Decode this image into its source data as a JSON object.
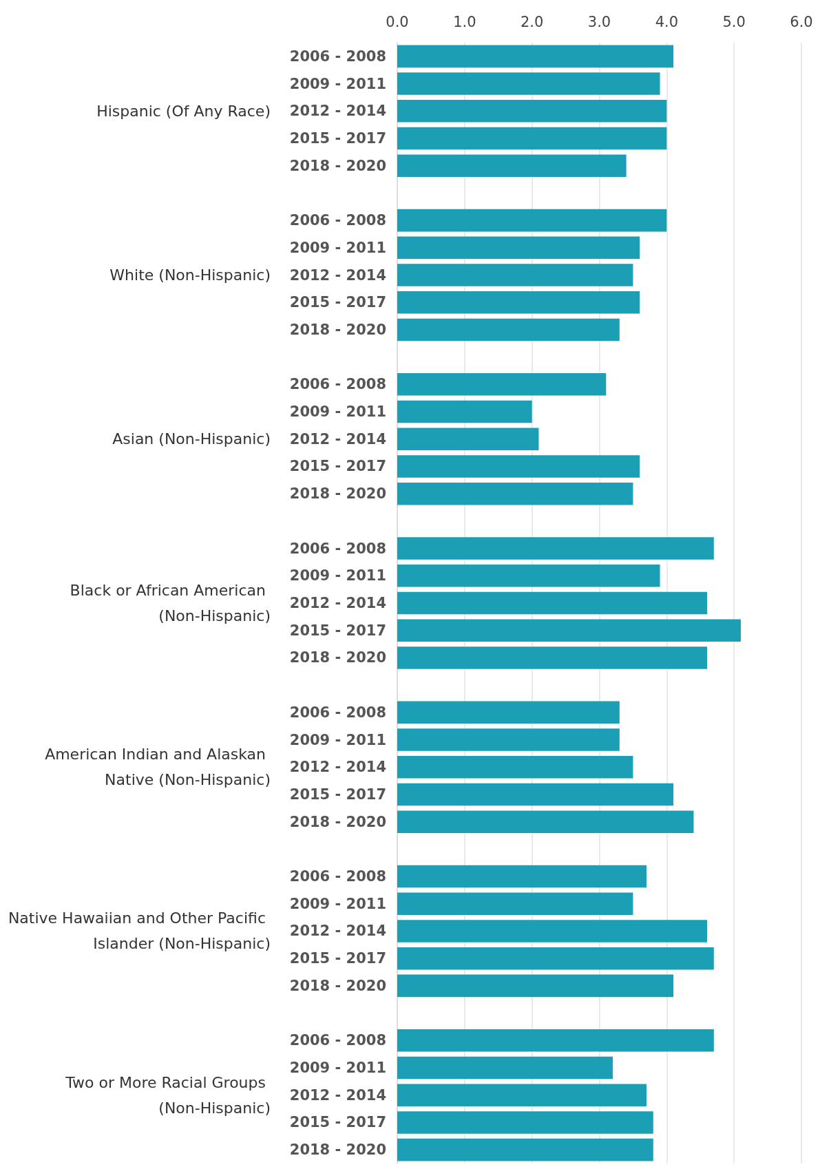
{
  "chart_data": {
    "type": "bar",
    "orientation": "horizontal",
    "color": "#1a9fb5",
    "categories": [
      "2006 - 2008",
      "2009 - 2011",
      "2012 - 2014",
      "2015 - 2017",
      "2018 - 2020",
      null,
      "2006 - 2008",
      "2009 - 2011",
      "2012 - 2014",
      "2015 - 2017",
      "2018 - 2020",
      null,
      "2006 - 2008",
      "2009 - 2011",
      "2012 - 2014",
      "2015 - 2017",
      "2018 - 2020",
      null,
      "2006 - 2008",
      "2009 - 2011",
      "2012 - 2014",
      "2015 - 2017",
      "2018 - 2020",
      null,
      "2006 - 2008",
      "2009 - 2011",
      "2012 - 2014",
      "2015 - 2017",
      "2018 - 2020",
      null,
      "2006 - 2008",
      "2009 - 2011",
      "2012 - 2014",
      "2015 - 2017",
      "2018 - 2020",
      null,
      "2006 - 2008",
      "2009 - 2011",
      "2012 - 2014",
      "2015 - 2017",
      "2018 - 2020"
    ],
    "values": [
      4.1,
      3.9,
      4.0,
      4.0,
      3.4,
      null,
      4.0,
      3.6,
      3.5,
      3.6,
      3.3,
      null,
      3.1,
      2.0,
      2.1,
      3.6,
      3.5,
      null,
      4.7,
      3.9,
      4.6,
      5.1,
      4.6,
      null,
      3.3,
      3.3,
      3.5,
      4.1,
      4.4,
      null,
      3.7,
      3.5,
      4.6,
      4.7,
      4.1,
      null,
      4.7,
      3.2,
      3.7,
      3.8,
      3.8
    ],
    "annotations": [
      "Hispanic (Of Any Race)",
      "White (Non-Hispanic)",
      "Asian (Non-Hispanic)",
      "Black or African American (Non-Hispanic)",
      "American Indian and Alaskan Native (Non-Hispanic)",
      "Native Hawaiian and Other Pacific Islander (Non-Hispanic)",
      "Two or More Racial Groups (Non-Hispanic)"
    ],
    "xlim": [
      0,
      6
    ],
    "xticks": [
      {
        "value": 0,
        "label": "0.0"
      },
      {
        "value": 1,
        "label": "1.0"
      },
      {
        "value": 2,
        "label": "2.0"
      },
      {
        "value": 3,
        "label": "3.0"
      },
      {
        "value": 4,
        "label": "4.0"
      },
      {
        "value": 5,
        "label": "5.0"
      },
      {
        "value": 6,
        "label": "6.0"
      }
    ],
    "grid": "x"
  }
}
